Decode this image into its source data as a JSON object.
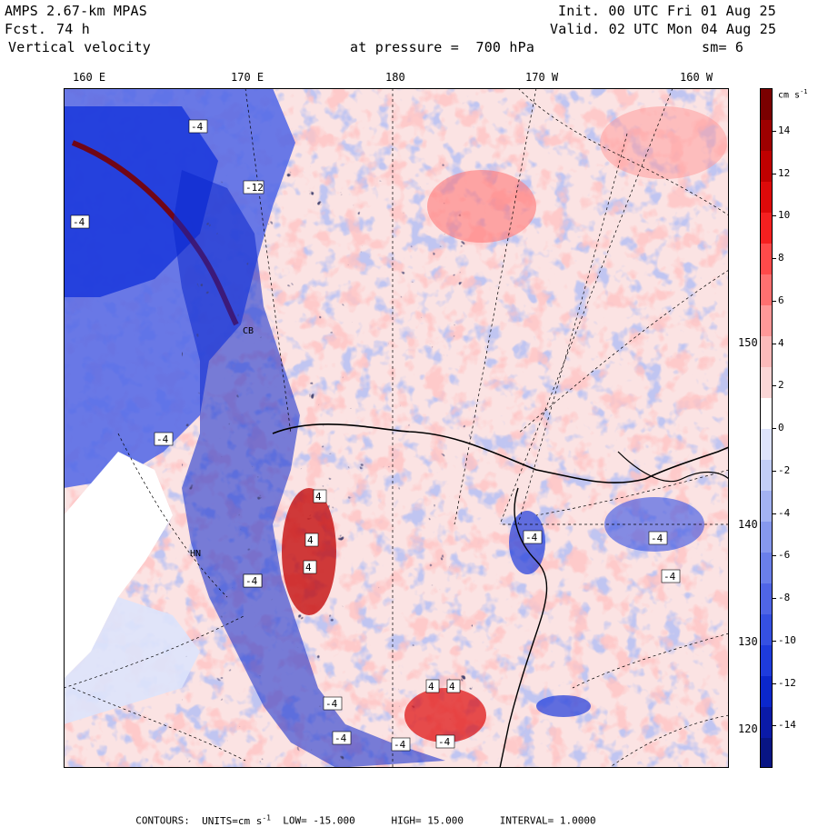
{
  "header": {
    "model": "AMPS 2.67-km MPAS",
    "forecast_label": "Fcst.",
    "forecast_value": "74 h",
    "field": "Vertical velocity",
    "init": "Init. 00 UTC Fri 01 Aug 25",
    "valid": "Valid. 02 UTC Mon 04 Aug 25",
    "pressure": "at pressure =  700 hPa",
    "smoothing": "sm= 6"
  },
  "map": {
    "top_longitude_labels": [
      "160 E",
      "170 E",
      "180",
      "170 W",
      "160 W"
    ],
    "right_longitude_labels": [
      "150 W",
      "140 W",
      "130 W",
      "120 W"
    ],
    "contour_labels": [
      "-12",
      "4",
      "4",
      "4",
      "-4",
      "-4",
      "-4",
      "-4",
      "-4",
      "-4",
      "4",
      "4",
      "-4",
      "-4",
      "-4",
      "-4",
      "-4",
      "-4"
    ],
    "station_labels": [
      "CB",
      "HN"
    ]
  },
  "colorbar": {
    "units": "cm s",
    "units_exponent": "-1",
    "tick_labels": [
      "14",
      "12",
      "10",
      "8",
      "6",
      "4",
      "2",
      "0",
      "-2",
      "-4",
      "-6",
      "-8",
      "-10",
      "-12",
      "-14"
    ],
    "colors": [
      "#7a0000",
      "#9e0000",
      "#c00000",
      "#dd0a0a",
      "#f52020",
      "#ff4a4a",
      "#ff7070",
      "#ff9898",
      "#fbbaba",
      "#fad5d5",
      "#ffffff",
      "#dde3fb",
      "#c2cdf6",
      "#a3b2f2",
      "#8698ee",
      "#6a7fea",
      "#4f65e6",
      "#3550e2",
      "#1e3bdc",
      "#0b27cc",
      "#0a1aa8",
      "#081584"
    ]
  },
  "footer": {
    "contours_label": "CONTOURS:",
    "units_text": "UNITS=cm s",
    "units_exp": "-1",
    "low_text": "LOW= -15.000",
    "high_text": "HIGH= 15.000",
    "interval_text": "INTERVAL= 1.0000"
  }
}
